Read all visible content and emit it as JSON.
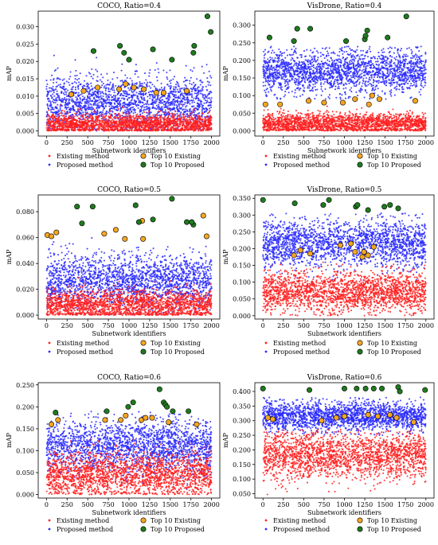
{
  "colors": {
    "existing": "#ff2020",
    "proposed": "#2a2aff",
    "top_existing": "#f5a623",
    "top_proposed": "#1f7a1f",
    "axis": "#000000"
  },
  "chart_data": [
    {
      "type": "scatter",
      "title": "COCO, Ratio=0.4",
      "xlabel": "Subnetwork identifiers",
      "ylabel": "mAP",
      "xlim": [
        -100,
        2100
      ],
      "ylim": [
        -0.0015,
        0.0345
      ],
      "xticks": [
        0,
        250,
        500,
        750,
        1000,
        1250,
        1500,
        1750,
        2000
      ],
      "xtick_labels": [
        "0",
        "250",
        "500",
        "750",
        "1000",
        "1250",
        "1500",
        "1750",
        "2000"
      ],
      "yticks": [
        0.0,
        0.005,
        0.01,
        0.015,
        0.02,
        0.025,
        0.03
      ],
      "ytick_labels": [
        "0.000",
        "0.005",
        "0.010",
        "0.015",
        "0.020",
        "0.025",
        "0.030"
      ],
      "existing_dist": {
        "n": 2000,
        "min": 0.0,
        "max": 0.008,
        "center": 0.002,
        "spread": 0.0015
      },
      "proposed_dist": {
        "n": 2000,
        "min": 0.0,
        "max": 0.023,
        "center": 0.008,
        "spread": 0.004
      },
      "top10_existing": [
        [
          300,
          0.0105
        ],
        [
          450,
          0.0115
        ],
        [
          620,
          0.0125
        ],
        [
          880,
          0.012
        ],
        [
          960,
          0.0135
        ],
        [
          1060,
          0.0125
        ],
        [
          1180,
          0.012
        ],
        [
          1330,
          0.011
        ],
        [
          1420,
          0.011
        ],
        [
          1700,
          0.0115
        ]
      ],
      "top10_proposed": [
        [
          570,
          0.023
        ],
        [
          890,
          0.0245
        ],
        [
          940,
          0.0225
        ],
        [
          1000,
          0.0205
        ],
        [
          1290,
          0.0235
        ],
        [
          1520,
          0.0205
        ],
        [
          1780,
          0.0225
        ],
        [
          1790,
          0.0245
        ],
        [
          1950,
          0.033
        ],
        [
          1990,
          0.0285
        ]
      ],
      "legend": {
        "placement": "bottom-center",
        "labels": [
          "Existing method",
          "Top 10 Existing",
          "Proposed method",
          "Top 10 Proposed"
        ]
      }
    },
    {
      "type": "scatter",
      "title": "VisDrone, Ratio=0.4",
      "xlabel": "Subnetwork identifiers",
      "ylabel": "mAP",
      "xlim": [
        -100,
        2100
      ],
      "ylim": [
        -0.015,
        0.34
      ],
      "xticks": [
        0,
        250,
        500,
        750,
        1000,
        1250,
        1500,
        1750,
        2000
      ],
      "xtick_labels": [
        "0",
        "250",
        "500",
        "750",
        "1000",
        "1250",
        "1500",
        "1750",
        "2000"
      ],
      "yticks": [
        0.0,
        0.05,
        0.1,
        0.15,
        0.2,
        0.25,
        0.3
      ],
      "ytick_labels": [
        "0.000",
        "0.050",
        "0.100",
        "0.150",
        "0.200",
        "0.250",
        "0.300"
      ],
      "existing_dist": {
        "n": 2000,
        "min": 0.0,
        "max": 0.07,
        "center": 0.02,
        "spread": 0.015
      },
      "proposed_dist": {
        "n": 2000,
        "min": 0.09,
        "max": 0.24,
        "center": 0.17,
        "spread": 0.03
      },
      "top10_existing": [
        [
          30,
          0.075
        ],
        [
          210,
          0.075
        ],
        [
          560,
          0.085
        ],
        [
          750,
          0.08
        ],
        [
          980,
          0.08
        ],
        [
          1130,
          0.09
        ],
        [
          1300,
          0.075
        ],
        [
          1340,
          0.1
        ],
        [
          1430,
          0.09
        ],
        [
          1870,
          0.085
        ]
      ],
      "top10_proposed": [
        [
          80,
          0.265
        ],
        [
          420,
          0.29
        ],
        [
          580,
          0.29
        ],
        [
          380,
          0.255
        ],
        [
          1250,
          0.26
        ],
        [
          1260,
          0.27
        ],
        [
          1280,
          0.285
        ],
        [
          1530,
          0.265
        ],
        [
          1760,
          0.325
        ],
        [
          1020,
          0.255
        ]
      ],
      "legend": {
        "placement": "bottom-center",
        "labels": [
          "Existing method",
          "Top 10 Existing",
          "Proposed method",
          "Top 10 Proposed"
        ]
      }
    },
    {
      "type": "scatter",
      "title": "COCO, Ratio=0.5",
      "xlabel": "Subnetwork identifiers",
      "ylabel": "mAP",
      "xlim": [
        -100,
        2100
      ],
      "ylim": [
        -0.003,
        0.093
      ],
      "xticks": [
        0,
        250,
        500,
        750,
        1000,
        1250,
        1500,
        1750,
        2000
      ],
      "xtick_labels": [
        "0",
        "250",
        "500",
        "750",
        "1000",
        "1250",
        "1500",
        "1750",
        "2000"
      ],
      "yticks": [
        0.0,
        0.02,
        0.04,
        0.06,
        0.08
      ],
      "ytick_labels": [
        "0.000",
        "0.020",
        "0.040",
        "0.060",
        "0.080"
      ],
      "existing_dist": {
        "n": 2000,
        "min": 0.0,
        "max": 0.03,
        "center": 0.008,
        "spread": 0.006
      },
      "proposed_dist": {
        "n": 2000,
        "min": 0.0,
        "max": 0.06,
        "center": 0.027,
        "spread": 0.01
      },
      "top10_existing": [
        [
          10,
          0.062
        ],
        [
          60,
          0.061
        ],
        [
          120,
          0.064
        ],
        [
          700,
          0.063
        ],
        [
          840,
          0.066
        ],
        [
          950,
          0.059
        ],
        [
          1160,
          0.073
        ],
        [
          1170,
          0.059
        ],
        [
          1900,
          0.077
        ],
        [
          1940,
          0.061
        ]
      ],
      "top10_proposed": [
        [
          370,
          0.084
        ],
        [
          430,
          0.071
        ],
        [
          560,
          0.084
        ],
        [
          1080,
          0.085
        ],
        [
          1120,
          0.072
        ],
        [
          1290,
          0.074
        ],
        [
          1520,
          0.09
        ],
        [
          1700,
          0.072
        ],
        [
          1780,
          0.07
        ],
        [
          1760,
          0.072
        ]
      ],
      "legend": {
        "placement": "bottom-center",
        "labels": [
          "Existing method",
          "Top 10 Existing",
          "Proposed method",
          "Top 10 Proposed"
        ]
      }
    },
    {
      "type": "scatter",
      "title": "VisDrone, Ratio=0.5",
      "xlabel": "Subnetwork identifiers",
      "ylabel": "mAP",
      "xlim": [
        -100,
        2100
      ],
      "ylim": [
        -0.01,
        0.36
      ],
      "xticks": [
        0,
        250,
        500,
        750,
        1000,
        1250,
        1500,
        1750,
        2000
      ],
      "xtick_labels": [
        "0",
        "250",
        "500",
        "750",
        "1000",
        "1250",
        "1500",
        "1750",
        "2000"
      ],
      "yticks": [
        0.0,
        0.05,
        0.1,
        0.15,
        0.2,
        0.25,
        0.3,
        0.35
      ],
      "ytick_labels": [
        "0.000",
        "0.050",
        "0.100",
        "0.150",
        "0.200",
        "0.250",
        "0.300",
        "0.350"
      ],
      "existing_dist": {
        "n": 2000,
        "min": 0.0,
        "max": 0.16,
        "center": 0.07,
        "spread": 0.03
      },
      "proposed_dist": {
        "n": 2000,
        "min": 0.1,
        "max": 0.31,
        "center": 0.215,
        "spread": 0.035
      },
      "top10_existing": [
        [
          380,
          0.18
        ],
        [
          460,
          0.195
        ],
        [
          580,
          0.185
        ],
        [
          950,
          0.21
        ],
        [
          1080,
          0.215
        ],
        [
          1130,
          0.19
        ],
        [
          1220,
          0.175
        ],
        [
          1240,
          0.19
        ],
        [
          1290,
          0.18
        ],
        [
          1360,
          0.205
        ]
      ],
      "top10_proposed": [
        [
          0,
          0.345
        ],
        [
          390,
          0.335
        ],
        [
          740,
          0.33
        ],
        [
          810,
          0.345
        ],
        [
          1140,
          0.325
        ],
        [
          1160,
          0.33
        ],
        [
          1290,
          0.315
        ],
        [
          1490,
          0.325
        ],
        [
          1560,
          0.33
        ],
        [
          1660,
          0.32
        ]
      ],
      "legend": {
        "placement": "bottom-center",
        "labels": [
          "Existing method",
          "Top 10 Existing",
          "Proposed method",
          "Top 10 Proposed"
        ]
      }
    },
    {
      "type": "scatter",
      "title": "COCO, Ratio=0.6",
      "xlabel": "Subnetwork identifiers",
      "ylabel": "mAP",
      "xlim": [
        -100,
        2100
      ],
      "ylim": [
        -0.008,
        0.255
      ],
      "xticks": [
        0,
        250,
        500,
        750,
        1000,
        1250,
        1500,
        1750,
        2000
      ],
      "xtick_labels": [
        "0",
        "250",
        "500",
        "750",
        "1000",
        "1250",
        "1500",
        "1750",
        "2000"
      ],
      "yticks": [
        0.0,
        0.05,
        0.1,
        0.15,
        0.2,
        0.25
      ],
      "ytick_labels": [
        "0.000",
        "0.050",
        "0.100",
        "0.150",
        "0.200",
        "0.250"
      ],
      "existing_dist": {
        "n": 2000,
        "min": 0.0,
        "max": 0.13,
        "center": 0.045,
        "spread": 0.025
      },
      "proposed_dist": {
        "n": 2000,
        "min": 0.01,
        "max": 0.19,
        "center": 0.11,
        "spread": 0.03
      },
      "top10_existing": [
        [
          60,
          0.16
        ],
        [
          140,
          0.17
        ],
        [
          710,
          0.17
        ],
        [
          900,
          0.17
        ],
        [
          960,
          0.18
        ],
        [
          1150,
          0.17
        ],
        [
          1200,
          0.175
        ],
        [
          1280,
          0.175
        ],
        [
          1480,
          0.165
        ],
        [
          1820,
          0.16
        ]
      ],
      "top10_proposed": [
        [
          110,
          0.187
        ],
        [
          730,
          0.19
        ],
        [
          990,
          0.2
        ],
        [
          1050,
          0.21
        ],
        [
          1370,
          0.24
        ],
        [
          1420,
          0.21
        ],
        [
          1440,
          0.205
        ],
        [
          1460,
          0.2
        ],
        [
          1530,
          0.19
        ],
        [
          1720,
          0.19
        ]
      ],
      "legend": {
        "placement": "bottom-center",
        "labels": [
          "Existing method",
          "Top 10 Existing",
          "Proposed method",
          "Top 10 Proposed"
        ]
      }
    },
    {
      "type": "scatter",
      "title": "VisDrone, Ratio=0.6",
      "xlabel": "Subnetwork identifiers",
      "ylabel": "mAP",
      "xlim": [
        -100,
        2100
      ],
      "ylim": [
        0.035,
        0.43
      ],
      "xticks": [
        0,
        250,
        500,
        750,
        1000,
        1250,
        1500,
        1750,
        2000
      ],
      "xtick_labels": [
        "0",
        "250",
        "500",
        "750",
        "1000",
        "1250",
        "1500",
        "1750",
        "2000"
      ],
      "yticks": [
        0.05,
        0.1,
        0.15,
        0.2,
        0.25,
        0.3,
        0.35,
        0.4
      ],
      "ytick_labels": [
        "0.050",
        "0.100",
        "0.150",
        "0.200",
        "0.250",
        "0.300",
        "0.350",
        "0.400"
      ],
      "existing_dist": {
        "n": 2000,
        "min": 0.04,
        "max": 0.27,
        "center": 0.18,
        "spread": 0.04
      },
      "proposed_dist": {
        "n": 2000,
        "min": 0.25,
        "max": 0.38,
        "center": 0.315,
        "spread": 0.025
      },
      "top10_existing": [
        [
          60,
          0.31
        ],
        [
          120,
          0.305
        ],
        [
          720,
          0.3
        ],
        [
          900,
          0.31
        ],
        [
          1000,
          0.315
        ],
        [
          1290,
          0.32
        ],
        [
          1410,
          0.315
        ],
        [
          1560,
          0.32
        ],
        [
          1640,
          0.31
        ],
        [
          1850,
          0.295
        ]
      ],
      "top10_proposed": [
        [
          0,
          0.41
        ],
        [
          570,
          0.405
        ],
        [
          1000,
          0.41
        ],
        [
          1150,
          0.41
        ],
        [
          1260,
          0.41
        ],
        [
          1360,
          0.41
        ],
        [
          1460,
          0.41
        ],
        [
          1660,
          0.415
        ],
        [
          1680,
          0.4
        ],
        [
          1990,
          0.405
        ]
      ],
      "legend": {
        "placement": "bottom-center",
        "labels": [
          "Existing method",
          "Top 10 Existing",
          "Proposed method",
          "Top 10 Proposed"
        ]
      }
    }
  ]
}
